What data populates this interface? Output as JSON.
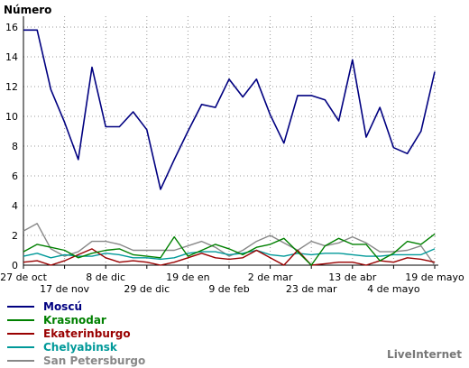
{
  "chart_data": {
    "type": "line",
    "ylabel": "Número",
    "ylim": [
      0,
      16
    ],
    "yticks": [
      0,
      2,
      4,
      6,
      8,
      10,
      12,
      14,
      16
    ],
    "grid": true,
    "x_tick_labels": [
      {
        "label": "27 de oct",
        "index": 0,
        "row": 0
      },
      {
        "label": "17 de nov",
        "index": 3,
        "row": 1
      },
      {
        "label": "8 de dic",
        "index": 6,
        "row": 0
      },
      {
        "label": "29 de dic",
        "index": 9,
        "row": 1
      },
      {
        "label": "19 de en",
        "index": 12,
        "row": 0
      },
      {
        "label": "9 de feb",
        "index": 15,
        "row": 1
      },
      {
        "label": "2 de mar",
        "index": 18,
        "row": 0
      },
      {
        "label": "23 de mar",
        "index": 21,
        "row": 1
      },
      {
        "label": "13 de abr",
        "index": 24,
        "row": 0
      },
      {
        "label": "4 de mayo",
        "index": 27,
        "row": 1
      },
      {
        "label": "19 de mayo",
        "index": 30,
        "row": 0
      }
    ],
    "n_points": 31,
    "series": [
      {
        "name": "Moscú",
        "color": "#000080",
        "values": [
          15.8,
          15.8,
          11.8,
          9.6,
          7.1,
          13.3,
          9.3,
          9.3,
          10.3,
          9.1,
          5.1,
          7.1,
          9.0,
          10.8,
          10.6,
          12.5,
          11.3,
          12.5,
          10.1,
          8.2,
          11.4,
          11.4,
          11.1,
          9.7,
          13.8,
          8.6,
          10.6,
          7.9,
          7.5,
          9.0,
          13.0
        ]
      },
      {
        "name": "Krasnodar",
        "color": "#008000",
        "values": [
          0.9,
          1.4,
          1.2,
          1.0,
          0.5,
          0.8,
          1.0,
          1.1,
          0.7,
          0.6,
          0.5,
          1.9,
          0.6,
          1.0,
          1.4,
          1.1,
          0.7,
          1.2,
          1.4,
          1.8,
          0.9,
          0.0,
          1.3,
          1.8,
          1.4,
          1.4,
          0.3,
          0.8,
          1.6,
          1.4,
          2.1
        ]
      },
      {
        "name": "Ekaterinburgo",
        "color": "#990000",
        "values": [
          0.2,
          0.3,
          0.0,
          0.3,
          0.7,
          1.1,
          0.5,
          0.2,
          0.3,
          0.2,
          0.0,
          0.2,
          0.5,
          0.8,
          0.5,
          0.4,
          0.5,
          1.0,
          0.5,
          0.0,
          1.0,
          0.0,
          0.1,
          0.2,
          0.2,
          0.0,
          0.3,
          0.2,
          0.5,
          0.4,
          0.2
        ]
      },
      {
        "name": "Chelyabinsk",
        "color": "#009999",
        "values": [
          0.6,
          0.8,
          0.5,
          0.7,
          0.6,
          0.6,
          0.8,
          0.7,
          0.5,
          0.5,
          0.4,
          0.5,
          0.8,
          0.9,
          0.9,
          0.7,
          0.8,
          1.0,
          0.7,
          0.6,
          0.8,
          0.7,
          0.8,
          0.8,
          0.7,
          0.6,
          0.6,
          0.7,
          0.7,
          0.7,
          1.1
        ]
      },
      {
        "name": "San Petersburgo",
        "color": "#888888",
        "values": [
          2.3,
          2.8,
          1.1,
          0.6,
          0.9,
          1.6,
          1.6,
          1.4,
          1.0,
          1.0,
          1.0,
          1.0,
          1.3,
          1.6,
          1.2,
          0.6,
          1.0,
          1.6,
          2.0,
          1.5,
          1.0,
          1.6,
          1.3,
          1.5,
          1.9,
          1.5,
          0.9,
          0.9,
          1.0,
          1.3,
          0.0
        ]
      }
    ]
  },
  "footer": "LiveInternet"
}
